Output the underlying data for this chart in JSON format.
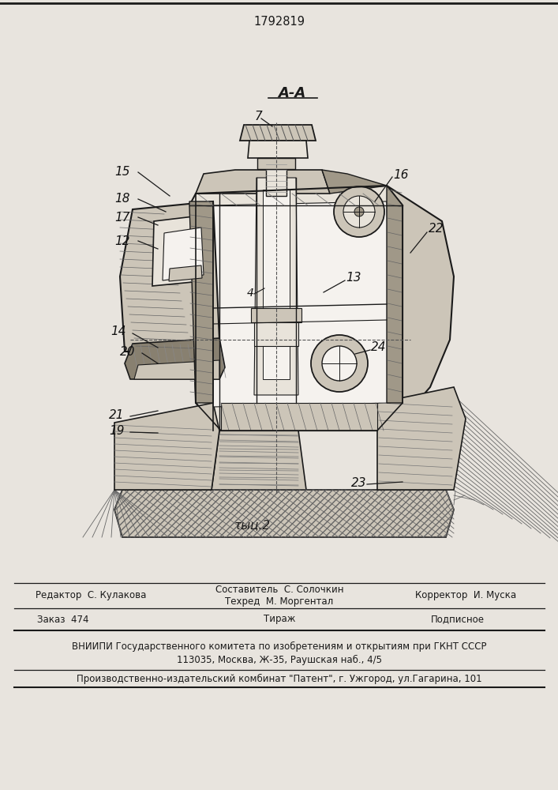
{
  "patent_number": "1792819",
  "figure_label": "τыц.2",
  "section_label": "A-A",
  "bg_color": "#e8e4de",
  "line_color": "#1a1a1a",
  "editor_line": "Редактор  С. Кулакова",
  "compiler_line1": "Составитель  С. Солочкин",
  "compiler_line2": "Техред  М. Моргентал",
  "corrector_line": "Корректор  И. Муска",
  "order_line": "Заказ  474",
  "tirazh_line": "Тираж",
  "podpisnoe_line": "Подписное",
  "vniip_line": "ВНИИПИ Государственного комитета по изобретениям и открытиям при ГКНТ СССР",
  "address_line": "113035, Москва, Ж-35, Раушская наб., 4/5",
  "plant_line": "Производственно-издательский комбинат \"Патент\", г. Ужгород, ул.Гагарина, 101"
}
